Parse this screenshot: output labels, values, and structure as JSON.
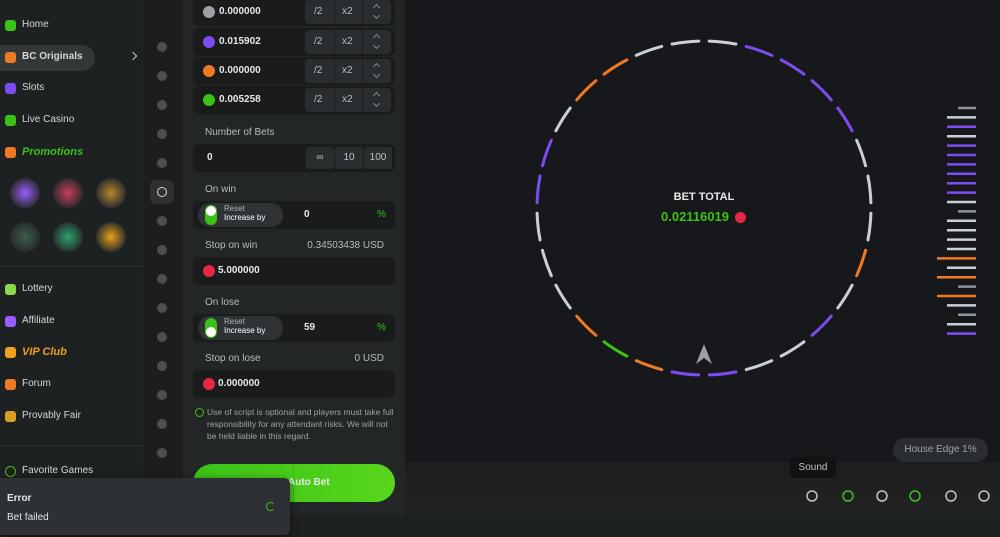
{
  "sidebar": {
    "nav": [
      "Home",
      "BC Originals",
      "Slots",
      "Live Casino",
      "Promotions"
    ],
    "nav2": [
      "Lottery",
      "Affiliate",
      "VIP Club",
      "Forum",
      "Provably Fair"
    ],
    "favorites": "Favorite Games"
  },
  "bet_rows": [
    {
      "amount": "0.000000",
      "half": "/2",
      "double": "x2"
    },
    {
      "amount": "0.015902",
      "half": "/2",
      "double": "x2"
    },
    {
      "amount": "0.000000",
      "half": "/2",
      "double": "x2"
    },
    {
      "amount": "0.005258",
      "half": "/2",
      "double": "x2"
    }
  ],
  "number_of_bets": {
    "label": "Number of Bets",
    "value": "0",
    "options": [
      "∞",
      "10",
      "100"
    ]
  },
  "on_win": {
    "label": "On win",
    "reset": "Reset",
    "increase": "Increase by",
    "value": "0",
    "unit": "%"
  },
  "stop_on_win": {
    "label": "Stop on win",
    "usd": "0.34503438 USD",
    "value": "5.000000"
  },
  "on_lose": {
    "label": "On lose",
    "reset": "Reset",
    "increase": "Increase by",
    "value": "59",
    "unit": "%"
  },
  "stop_on_lose": {
    "label": "Stop on lose",
    "usd": "0 USD",
    "value": "0.000000"
  },
  "disclaimer": "Use of script is optional and players must take full responsibility for any attendant risks. We will not be held liable in this regard.",
  "button": "Auto Bet",
  "game": {
    "bet_total_label": "BET TOTAL",
    "bet_total": "0.02116019",
    "house_edge": "House Edge 1%",
    "tooltip": "Sound"
  },
  "toast": {
    "title": "Error",
    "message": "Bet failed"
  }
}
